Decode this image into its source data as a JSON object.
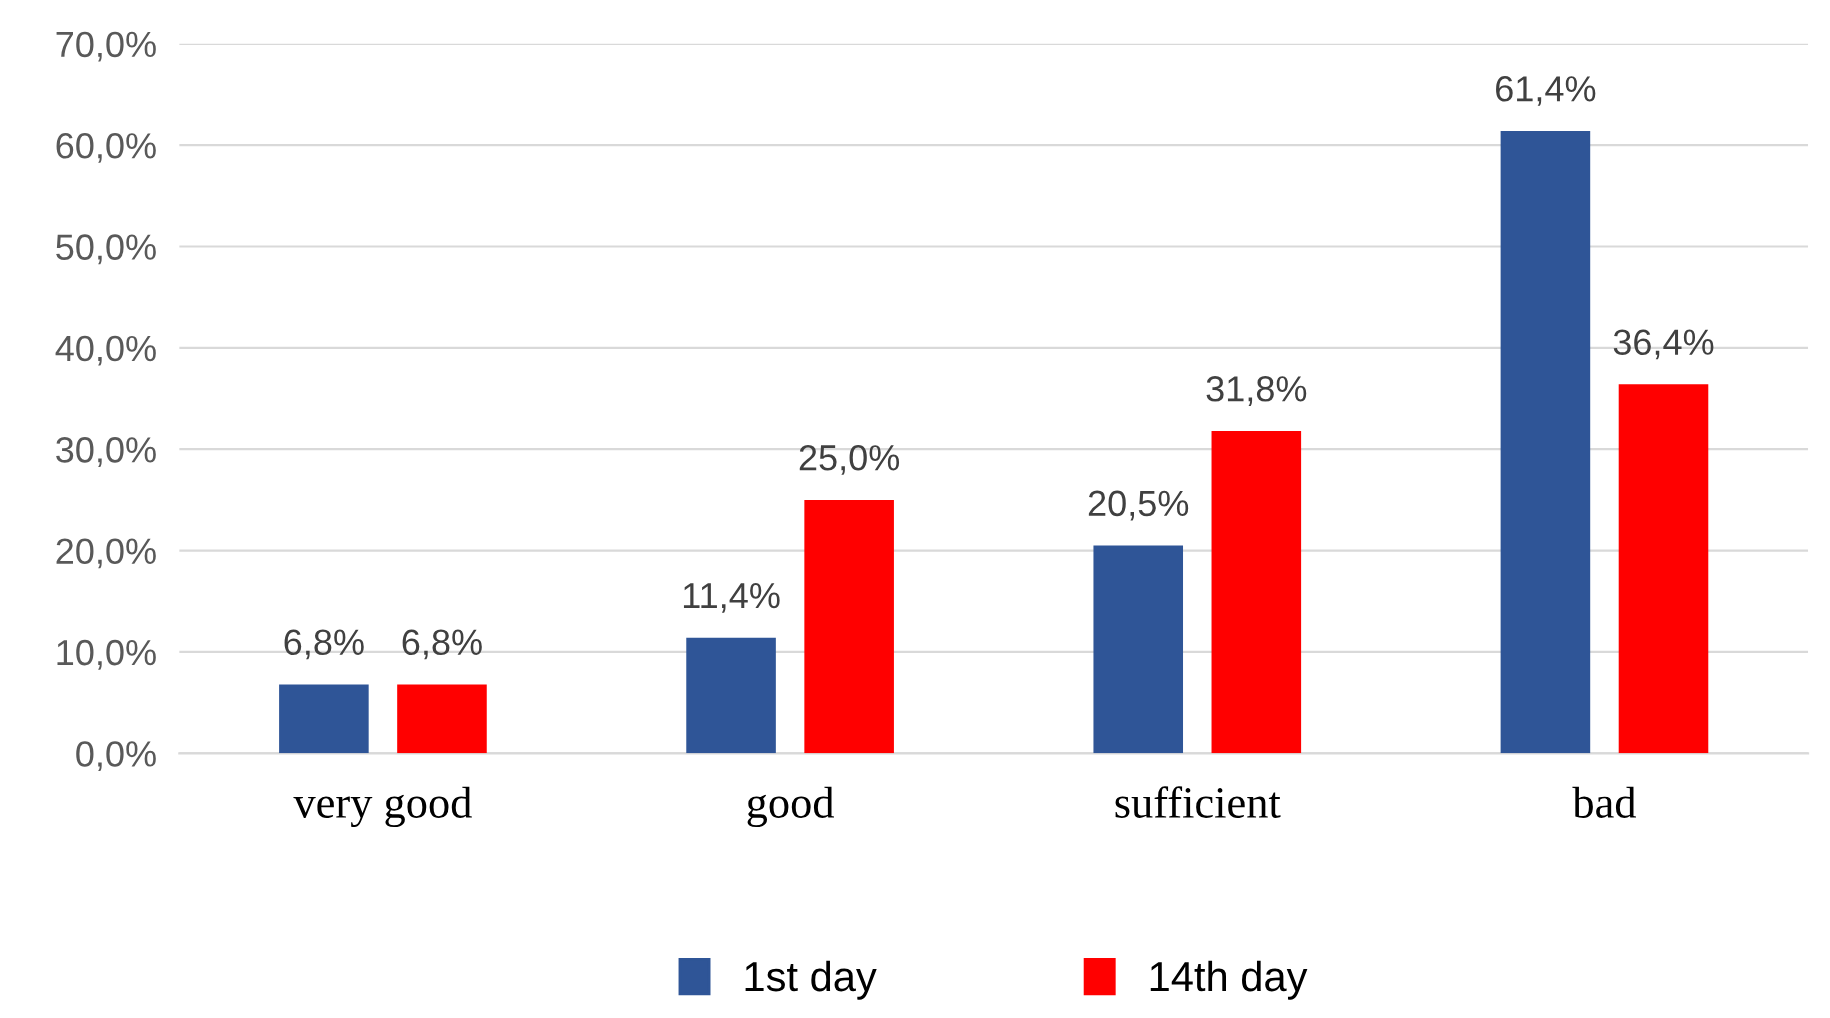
{
  "chart_data": {
    "type": "bar",
    "categories": [
      "very good",
      "good",
      "sufficient",
      "bad"
    ],
    "series": [
      {
        "name": "1st day",
        "color": "#2f5597",
        "values": [
          6.8,
          11.4,
          20.5,
          61.4
        ],
        "value_labels": [
          "6,8%",
          "11,4%",
          "20,5%",
          "61,4%"
        ]
      },
      {
        "name": "14th day",
        "color": "#ff0000",
        "values": [
          6.8,
          25.0,
          31.8,
          36.4
        ],
        "value_labels": [
          "6,8%",
          "25,0%",
          "31,8%",
          "36,4%"
        ]
      }
    ],
    "ylim": [
      0,
      70
    ],
    "yticks": [
      {
        "value": 0,
        "label": "0,0%"
      },
      {
        "value": 10,
        "label": "10,0%"
      },
      {
        "value": 20,
        "label": "20,0%"
      },
      {
        "value": 30,
        "label": "30,0%"
      },
      {
        "value": 40,
        "label": "40,0%"
      },
      {
        "value": 50,
        "label": "50,0%"
      },
      {
        "value": 60,
        "label": "60,0%"
      },
      {
        "value": 70,
        "label": "70,0%"
      }
    ],
    "grid": "y",
    "legend": "bottom"
  }
}
